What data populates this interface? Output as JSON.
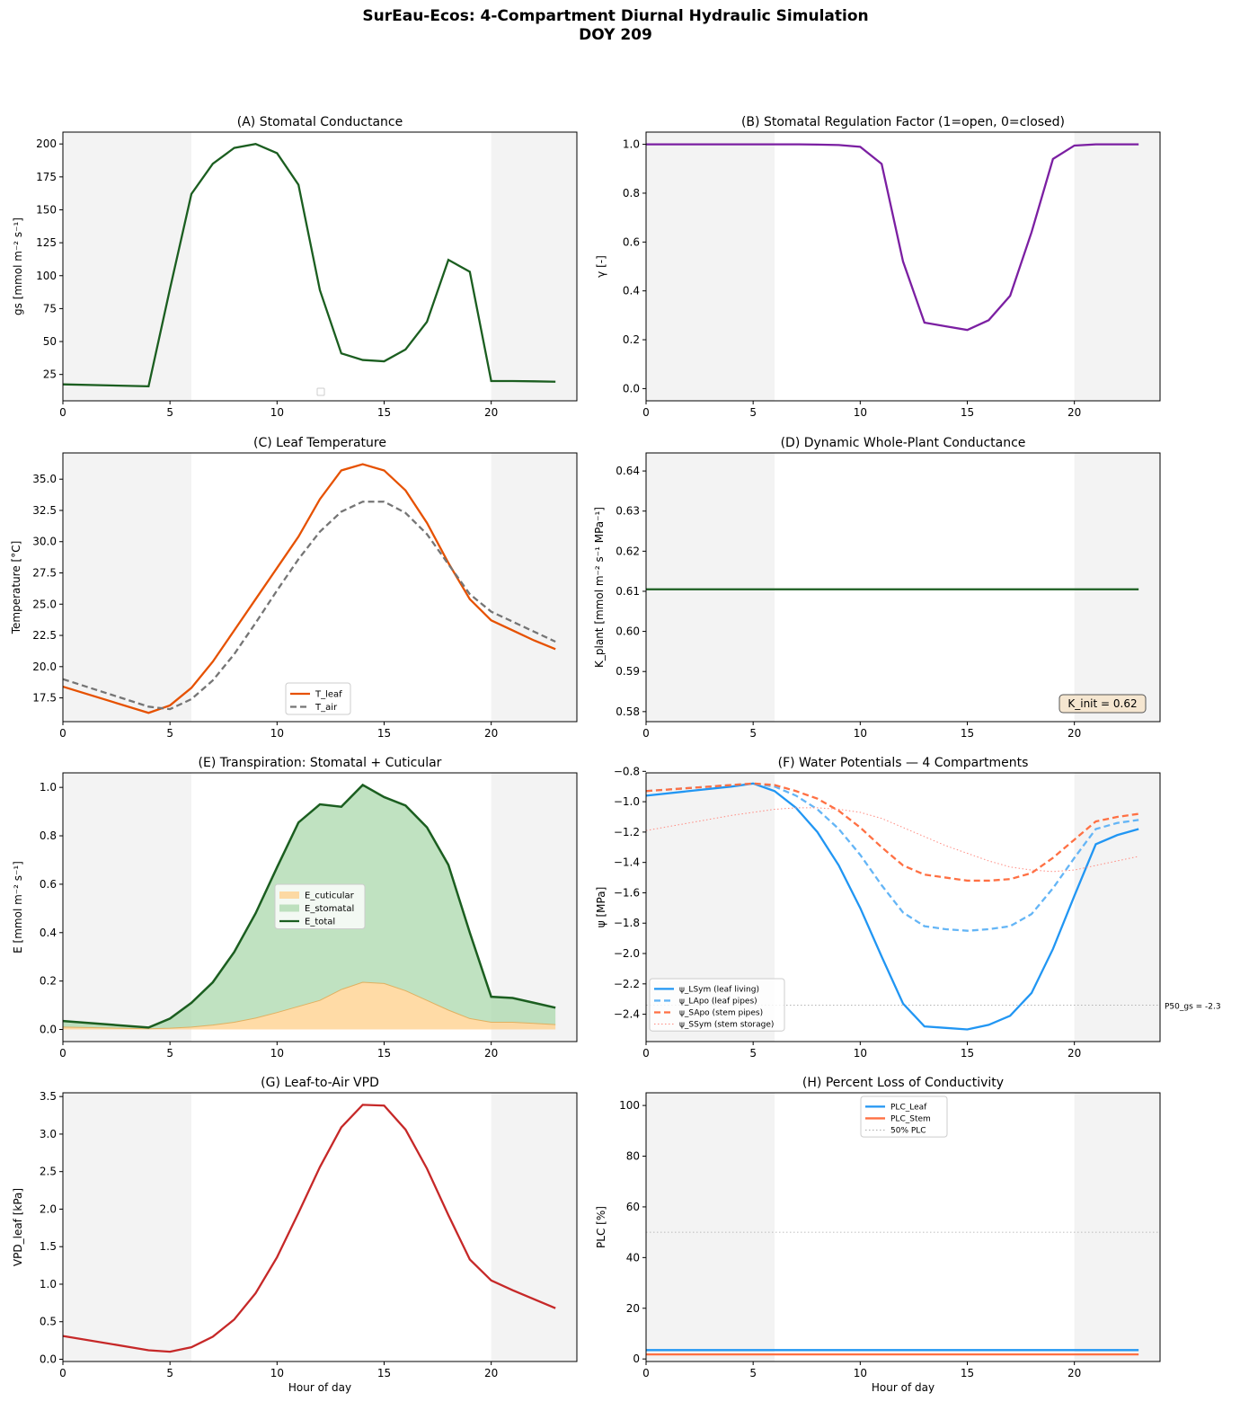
{
  "title_line1": "SurEau-Ecos: 4-Compartment Diurnal Hydraulic Simulation",
  "title_line2": "DOY 209",
  "night_shading": [
    [
      0,
      6
    ],
    [
      20,
      24
    ]
  ],
  "chart_data": [
    {
      "id": "A",
      "type": "line",
      "title": "(A) Stomatal Conductance",
      "xlabel": "",
      "ylabel": "gs [mmol m⁻² s⁻¹]",
      "xlim": [
        0,
        24
      ],
      "ylim": [
        5,
        209
      ],
      "xticks": [
        0,
        5,
        10,
        15,
        20
      ],
      "yticks": [
        25,
        50,
        75,
        100,
        125,
        150,
        175,
        200
      ],
      "ytick_labels": [
        "25",
        "50",
        "75",
        "100",
        "125",
        "150",
        "175",
        "200"
      ],
      "x": [
        0,
        4,
        5,
        6,
        7,
        8,
        9,
        10,
        11,
        12,
        13,
        14,
        15,
        16,
        17,
        18,
        19,
        20,
        21,
        22,
        23
      ],
      "series": [
        {
          "name": "gs",
          "color": "#1b5e20",
          "style": "solid",
          "values": [
            17.5,
            16,
            90,
            162,
            185,
            197,
            200,
            193,
            169,
            89,
            41,
            36,
            35,
            44,
            65,
            112,
            103,
            20,
            20,
            19.8,
            19.5
          ]
        }
      ],
      "legend": "empty"
    },
    {
      "id": "B",
      "type": "line",
      "title": "(B) Stomatal Regulation Factor (1=open, 0=closed)",
      "xlabel": "",
      "ylabel": "γ [-]",
      "xlim": [
        0,
        24
      ],
      "ylim": [
        -0.05,
        1.05
      ],
      "xticks": [
        0,
        5,
        10,
        15,
        20
      ],
      "yticks": [
        0,
        0.2,
        0.4,
        0.6,
        0.8,
        1.0
      ],
      "ytick_labels": [
        "0.0",
        "0.2",
        "0.4",
        "0.6",
        "0.8",
        "1.0"
      ],
      "x": [
        0,
        4,
        5,
        6,
        7,
        8,
        9,
        10,
        11,
        12,
        13,
        14,
        15,
        16,
        17,
        18,
        19,
        20,
        21,
        22,
        23
      ],
      "series": [
        {
          "name": "γ",
          "color": "#7b1fa2",
          "style": "solid",
          "values": [
            1,
            1,
            1,
            1,
            1,
            0.999,
            0.997,
            0.99,
            0.92,
            0.52,
            0.27,
            0.255,
            0.24,
            0.28,
            0.38,
            0.64,
            0.94,
            0.995,
            1,
            1,
            1
          ]
        }
      ]
    },
    {
      "id": "C",
      "type": "line",
      "title": "(C) Leaf Temperature",
      "xlabel": "",
      "ylabel": "Temperature [°C]",
      "xlim": [
        0,
        24
      ],
      "ylim": [
        15.6,
        37.1
      ],
      "xticks": [
        0,
        5,
        10,
        15,
        20
      ],
      "yticks": [
        17.5,
        20,
        22.5,
        25,
        27.5,
        30,
        32.5,
        35
      ],
      "ytick_labels": [
        "17.5",
        "20.0",
        "22.5",
        "25.0",
        "27.5",
        "30.0",
        "32.5",
        "35.0"
      ],
      "x": [
        0,
        4,
        5,
        6,
        7,
        8,
        9,
        10,
        11,
        12,
        13,
        14,
        15,
        16,
        17,
        18,
        19,
        20,
        21,
        22,
        23
      ],
      "series": [
        {
          "name": "T_leaf",
          "color": "#e65100",
          "style": "solid",
          "values": [
            18.4,
            16.3,
            16.9,
            18.3,
            20.4,
            22.9,
            25.4,
            27.9,
            30.4,
            33.4,
            35.7,
            36.2,
            35.7,
            34.1,
            31.5,
            28.3,
            25.4,
            23.7,
            22.9,
            22.1,
            21.4
          ]
        },
        {
          "name": "T_air",
          "color": "#757575",
          "style": "dashed",
          "values": [
            19,
            16.8,
            16.6,
            17.4,
            18.9,
            21,
            23.5,
            26.1,
            28.6,
            30.8,
            32.4,
            33.2,
            33.2,
            32.3,
            30.6,
            28.2,
            25.8,
            24.4,
            23.6,
            22.8,
            22
          ]
        }
      ],
      "legend": "lower center"
    },
    {
      "id": "D",
      "type": "line",
      "title": "(D) Dynamic Whole-Plant Conductance",
      "xlabel": "",
      "ylabel": "K_plant [mmol m⁻² s⁻¹ MPa⁻¹]",
      "xlim": [
        0,
        24
      ],
      "ylim": [
        0.5775,
        0.6445
      ],
      "xticks": [
        0,
        5,
        10,
        15,
        20
      ],
      "yticks": [
        0.58,
        0.59,
        0.6,
        0.61,
        0.62,
        0.63,
        0.64
      ],
      "ytick_labels": [
        "0.58",
        "0.59",
        "0.60",
        "0.61",
        "0.62",
        "0.63",
        "0.64"
      ],
      "x": [
        0,
        23
      ],
      "series": [
        {
          "name": "K_plant",
          "color": "#1b5e20",
          "style": "solid",
          "values": [
            0.6105,
            0.6105
          ]
        }
      ],
      "annotation": "K_init = 0.62"
    },
    {
      "id": "E",
      "type": "area",
      "title": "(E) Transpiration: Stomatal + Cuticular",
      "xlabel": "",
      "ylabel": "E [mmol m⁻² s⁻¹]",
      "xlim": [
        0,
        24
      ],
      "ylim": [
        -0.05,
        1.06
      ],
      "xticks": [
        0,
        5,
        10,
        15,
        20
      ],
      "yticks": [
        0,
        0.2,
        0.4,
        0.6,
        0.8,
        1.0
      ],
      "ytick_labels": [
        "0.0",
        "0.2",
        "0.4",
        "0.6",
        "0.8",
        "1.0"
      ],
      "x": [
        0,
        4,
        5,
        6,
        7,
        8,
        9,
        10,
        11,
        12,
        13,
        14,
        15,
        16,
        17,
        18,
        19,
        20,
        21,
        22,
        23
      ],
      "series": [
        {
          "name": "E_cuticular",
          "color": "#ffcc80",
          "style": "fill",
          "values": [
            0.01,
            0.003,
            0.005,
            0.01,
            0.018,
            0.03,
            0.047,
            0.07,
            0.095,
            0.12,
            0.165,
            0.195,
            0.19,
            0.16,
            0.12,
            0.08,
            0.045,
            0.03,
            0.03,
            0.025,
            0.02
          ]
        },
        {
          "name": "E_stomatal",
          "color": "#a5d6a7",
          "style": "fill-between"
        },
        {
          "name": "E_total",
          "color": "#1b5e20",
          "style": "solid",
          "values": [
            0.035,
            0.008,
            0.045,
            0.11,
            0.195,
            0.32,
            0.48,
            0.67,
            0.855,
            0.93,
            0.92,
            1.01,
            0.96,
            0.925,
            0.835,
            0.68,
            0.4,
            0.135,
            0.13,
            0.11,
            0.09
          ]
        }
      ],
      "legend": "center"
    },
    {
      "id": "F",
      "type": "line",
      "title": "(F) Water Potentials — 4 Compartments",
      "xlabel": "",
      "ylabel": "ψ [MPa]",
      "xlim": [
        0,
        24
      ],
      "ylim": [
        -2.58,
        -0.81
      ],
      "xticks": [
        0,
        5,
        10,
        15,
        20
      ],
      "yticks": [
        -2.4,
        -2.2,
        -2.0,
        -1.8,
        -1.6,
        -1.4,
        -1.2,
        -1.0,
        -0.8
      ],
      "ytick_labels": [
        "−2.4",
        "−2.2",
        "−2.0",
        "−1.8",
        "−1.6",
        "−1.4",
        "−1.2",
        "−1.0",
        "−0.8"
      ],
      "x": [
        0,
        4,
        5,
        6,
        7,
        8,
        9,
        10,
        11,
        12,
        13,
        14,
        15,
        16,
        17,
        18,
        19,
        20,
        21,
        22,
        23
      ],
      "series": [
        {
          "name": "ψ_LSym (leaf living)",
          "color": "#2196f3",
          "style": "solid",
          "values": [
            -0.96,
            -0.9,
            -0.88,
            -0.93,
            -1.04,
            -1.2,
            -1.42,
            -1.7,
            -2.02,
            -2.33,
            -2.48,
            -2.49,
            -2.5,
            -2.47,
            -2.41,
            -2.26,
            -1.97,
            -1.62,
            -1.28,
            -1.22,
            -1.18
          ]
        },
        {
          "name": "ψ_LApo (leaf pipes)",
          "color": "#64b5f6",
          "style": "dashed",
          "values": [
            -0.93,
            -0.89,
            -0.88,
            -0.9,
            -0.96,
            -1.05,
            -1.18,
            -1.35,
            -1.55,
            -1.73,
            -1.82,
            -1.84,
            -1.85,
            -1.84,
            -1.82,
            -1.74,
            -1.57,
            -1.37,
            -1.18,
            -1.14,
            -1.12
          ]
        },
        {
          "name": "ψ_SApo (stem pipes)",
          "color": "#ff7043",
          "style": "dashed",
          "values": [
            -0.93,
            -0.89,
            -0.88,
            -0.89,
            -0.93,
            -0.98,
            -1.06,
            -1.17,
            -1.3,
            -1.42,
            -1.48,
            -1.5,
            -1.52,
            -1.52,
            -1.51,
            -1.47,
            -1.37,
            -1.25,
            -1.13,
            -1.1,
            -1.08
          ]
        },
        {
          "name": "ψ_SSym (stem storage)",
          "color": "#ff8a80",
          "style": "dotted",
          "values": [
            -1.19,
            -1.09,
            -1.07,
            -1.05,
            -1.04,
            -1.04,
            -1.05,
            -1.07,
            -1.11,
            -1.17,
            -1.23,
            -1.29,
            -1.34,
            -1.39,
            -1.43,
            -1.45,
            -1.46,
            -1.45,
            -1.42,
            -1.39,
            -1.36
          ]
        }
      ],
      "hline": {
        "y": -2.34,
        "label": "P50_gs = -2.3"
      },
      "legend": "lower left"
    },
    {
      "id": "G",
      "type": "line",
      "title": "(G) Leaf-to-Air VPD",
      "xlabel": "Hour of day",
      "ylabel": "VPD_leaf [kPa]",
      "xlim": [
        0,
        24
      ],
      "ylim": [
        -0.03,
        3.55
      ],
      "xticks": [
        0,
        5,
        10,
        15,
        20
      ],
      "yticks": [
        0,
        0.5,
        1,
        1.5,
        2,
        2.5,
        3,
        3.5
      ],
      "ytick_labels": [
        "0.0",
        "0.5",
        "1.0",
        "1.5",
        "2.0",
        "2.5",
        "3.0",
        "3.5"
      ],
      "x": [
        0,
        4,
        5,
        6,
        7,
        8,
        9,
        10,
        11,
        12,
        13,
        14,
        15,
        16,
        17,
        18,
        19,
        20,
        21,
        22,
        23
      ],
      "series": [
        {
          "name": "VPD_leaf",
          "color": "#c62828",
          "style": "solid",
          "values": [
            0.31,
            0.12,
            0.1,
            0.16,
            0.3,
            0.53,
            0.88,
            1.36,
            1.95,
            2.56,
            3.09,
            3.39,
            3.38,
            3.06,
            2.54,
            1.92,
            1.33,
            1.05,
            0.92,
            0.8,
            0.68
          ]
        }
      ]
    },
    {
      "id": "H",
      "type": "line",
      "title": "(H) Percent Loss of Conductivity",
      "xlabel": "Hour of day",
      "ylabel": "PLC [%]",
      "xlim": [
        0,
        24
      ],
      "ylim": [
        -1,
        105
      ],
      "xticks": [
        0,
        5,
        10,
        15,
        20
      ],
      "yticks": [
        0,
        20,
        40,
        60,
        80,
        100
      ],
      "ytick_labels": [
        "0",
        "20",
        "40",
        "60",
        "80",
        "100"
      ],
      "x": [
        0,
        23
      ],
      "series": [
        {
          "name": "PLC_Leaf",
          "color": "#2196f3",
          "style": "solid",
          "values": [
            3.5,
            3.5
          ]
        },
        {
          "name": "PLC_Stem",
          "color": "#ff7043",
          "style": "solid",
          "values": [
            1.8,
            1.8
          ]
        },
        {
          "name": "50% PLC",
          "color": "#aaaaaa",
          "style": "dotted",
          "hline": 50
        }
      ],
      "legend": "upper center"
    }
  ]
}
